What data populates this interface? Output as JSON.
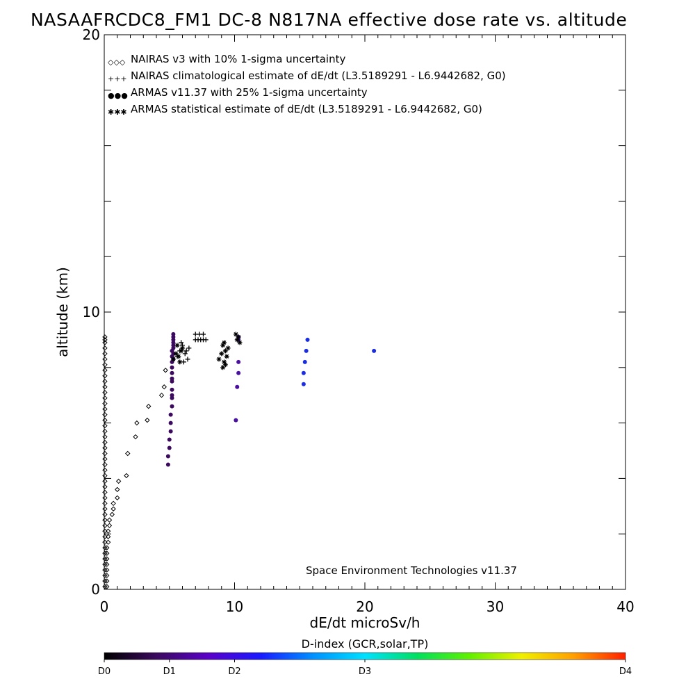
{
  "chart_data": {
    "type": "scatter",
    "title": "NASAAFRCDC8_FM1 DC-8   N817NA effective dose rate vs. altitude",
    "xlabel": "dE/dt microSv/h",
    "ylabel": "altitude (km)",
    "xlim": [
      0,
      40
    ],
    "ylim": [
      0,
      20
    ],
    "x_ticks": [
      "0",
      "10",
      "20",
      "30",
      "40"
    ],
    "y_ticks": [
      "0",
      "10",
      "20"
    ],
    "grid": false,
    "legend_position": "top-left",
    "legend": [
      {
        "symbol": "◇◇◇",
        "label": "NAIRAS v3 with 10% 1-sigma uncertainty"
      },
      {
        "symbol": "+++",
        "label": "NAIRAS climatological estimate of dE/dt (L3.5189291 - L6.9442682, G0)"
      },
      {
        "symbol": "●●●",
        "label": "ARMAS v11.37 with 25% 1-sigma uncertainty"
      },
      {
        "symbol": "✱✱✱",
        "label": "ARMAS statistical estimate of dE/dt (L3.5189291 - L6.9442682, G0)"
      }
    ],
    "annotation": "Space Environment Technologies v11.37",
    "colorbar": {
      "title": "D-index (GCR,solar,TP)",
      "ticks": [
        {
          "label": "D0",
          "value": 0
        },
        {
          "label": "D1",
          "value": 5
        },
        {
          "label": "D2",
          "value": 10
        },
        {
          "label": "D3",
          "value": 20
        },
        {
          "label": "D4",
          "value": 40
        }
      ],
      "stops": [
        "#000000",
        "#3b0a5e",
        "#5a00c8",
        "#1a1aff",
        "#0090ff",
        "#00e0ff",
        "#00e060",
        "#60f000",
        "#f0f000",
        "#ffa000",
        "#ff2000"
      ]
    },
    "series": [
      {
        "name": "NAIRAS v3 with 10% 1-sigma uncertainty",
        "marker": "diamond",
        "color": "#000000",
        "x": [
          0.05,
          0.05,
          0.05,
          0.05,
          0.05,
          0.05,
          0.05,
          0.05,
          0.05,
          0.05,
          0.05,
          0.05,
          0.05,
          0.05,
          0.05,
          0.05,
          0.05,
          0.05,
          0.05,
          0.05,
          0.05,
          0.05,
          0.05,
          0.05,
          0.05,
          0.05,
          0.05,
          0.05,
          0.05,
          0.05,
          0.05,
          0.05,
          0.05,
          0.05,
          0.05,
          0.05,
          0.05,
          0.05,
          0.05,
          0.05,
          0.05,
          0.05,
          0.05,
          0.05,
          0.05,
          0.05,
          0.05,
          0.2,
          0.2,
          0.2,
          0.2,
          0.2,
          0.2,
          0.2,
          0.2,
          0.3,
          0.3,
          0.3,
          0.4,
          0.4,
          0.6,
          0.7,
          0.7,
          1.0,
          1.0,
          1.1,
          1.7,
          1.8,
          2.4,
          2.5,
          3.3,
          3.4,
          4.4,
          4.6,
          4.7
        ],
        "y": [
          0.1,
          0.3,
          0.5,
          0.7,
          0.9,
          1.1,
          1.3,
          1.5,
          1.7,
          1.9,
          2.1,
          2.3,
          2.5,
          2.7,
          2.9,
          3.1,
          3.3,
          3.5,
          3.7,
          3.9,
          4.1,
          4.3,
          4.5,
          4.7,
          4.9,
          5.1,
          5.3,
          5.5,
          5.7,
          5.9,
          6.1,
          6.3,
          6.5,
          6.7,
          6.9,
          7.1,
          7.3,
          7.5,
          7.7,
          7.9,
          8.1,
          8.3,
          8.5,
          8.7,
          8.9,
          9.0,
          9.1,
          0.1,
          0.3,
          0.5,
          0.7,
          0.9,
          1.1,
          1.3,
          1.5,
          1.7,
          1.9,
          2.1,
          2.3,
          2.5,
          2.7,
          2.9,
          3.1,
          3.3,
          3.6,
          3.9,
          4.1,
          4.9,
          5.5,
          6.0,
          6.1,
          6.6,
          7.0,
          7.3,
          7.9
        ]
      },
      {
        "name": "NAIRAS climatological estimate of dE/dt (L3.5189291 - L6.9442682, G0)",
        "marker": "plus",
        "color": "#000000",
        "x": [
          5.6,
          5.8,
          6.0,
          6.2,
          6.4,
          6.5,
          5.9,
          6.1,
          6.3,
          7.0,
          7.2,
          7.4,
          7.6,
          7.8,
          7.0,
          7.3,
          7.6
        ],
        "y": [
          8.4,
          8.6,
          8.8,
          8.5,
          8.3,
          8.7,
          8.9,
          8.2,
          8.6,
          9.0,
          9.0,
          9.0,
          9.0,
          9.0,
          9.2,
          9.2,
          9.2
        ]
      },
      {
        "name": "ARMAS v11.37 with 25% 1-sigma uncertainty",
        "marker": "circle",
        "color": "#3b0a5e",
        "x": [
          4.9,
          4.9,
          5.0,
          5.0,
          5.1,
          5.1,
          5.1,
          5.2,
          5.2,
          5.2,
          5.2,
          5.2,
          5.2,
          5.2,
          5.2,
          5.2,
          5.3,
          5.3,
          5.3,
          5.3,
          5.3,
          5.3,
          5.3,
          5.3,
          5.2,
          5.2,
          10.1,
          10.2,
          10.3,
          10.3,
          10.3,
          10.3,
          15.3,
          15.3,
          15.4,
          15.5,
          15.6,
          20.7
        ],
        "y": [
          4.5,
          4.8,
          5.1,
          5.4,
          5.7,
          6.0,
          6.3,
          6.6,
          6.9,
          7.2,
          7.5,
          7.8,
          8.0,
          8.2,
          8.4,
          8.6,
          8.8,
          9.0,
          9.2,
          8.3,
          8.5,
          8.7,
          8.9,
          9.1,
          7.6,
          7.0,
          6.1,
          7.3,
          7.8,
          8.2,
          9.0,
          9.1,
          7.4,
          7.8,
          8.2,
          8.6,
          9.0,
          8.6
        ],
        "colors": [
          "#3b0a5e",
          "#3b0a5e",
          "#3b0a5e",
          "#3b0a5e",
          "#3b0a5e",
          "#3b0a5e",
          "#3b0a5e",
          "#3b0a5e",
          "#3b0a5e",
          "#3b0a5e",
          "#3b0a5e",
          "#3b0a5e",
          "#3b0a5e",
          "#3b0a5e",
          "#3b0a5e",
          "#3b0a5e",
          "#3b0a5e",
          "#3b0a5e",
          "#3b0a5e",
          "#3b0a5e",
          "#3b0a5e",
          "#3b0a5e",
          "#3b0a5e",
          "#3b0a5e",
          "#3b0a5e",
          "#3b0a5e",
          "#4a10a0",
          "#4a10a0",
          "#4a10a0",
          "#4a10a0",
          "#4a10a0",
          "#4a10a0",
          "#1a2ee0",
          "#1a2ee0",
          "#1a2ee0",
          "#1a2ee0",
          "#1a2ee0",
          "#1a2ee0"
        ]
      },
      {
        "name": "ARMAS statistical estimate of dE/dt (L3.5189291 - L6.9442682, G0)",
        "marker": "asterisk",
        "color": "#000000",
        "x": [
          5.3,
          5.5,
          5.7,
          5.9,
          5.6,
          5.8,
          6.0,
          8.8,
          9.0,
          9.1,
          9.2,
          9.3,
          9.2,
          9.4,
          9.1,
          9.3,
          9.5,
          10.1,
          10.2,
          10.3,
          10.4
        ],
        "y": [
          8.3,
          8.5,
          8.4,
          8.6,
          8.8,
          8.2,
          8.7,
          8.3,
          8.5,
          8.8,
          8.2,
          8.6,
          8.9,
          8.4,
          8.0,
          8.1,
          8.7,
          9.2,
          9.0,
          9.1,
          8.9
        ]
      }
    ]
  }
}
